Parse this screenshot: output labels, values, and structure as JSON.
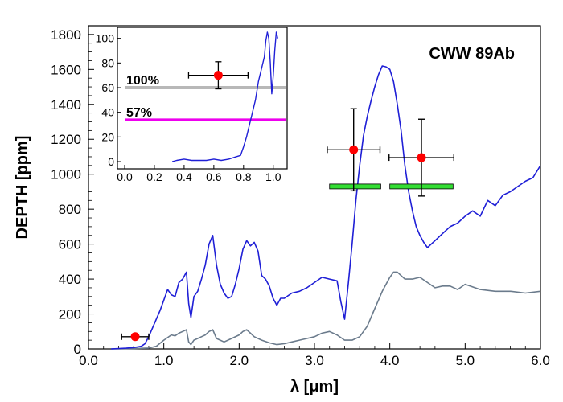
{
  "chart_data": {
    "type": "line",
    "title": "CWW 89Ab",
    "xlabel": "λ [μm]",
    "ylabel": "DEPTH [ppm]",
    "xlim": [
      0.0,
      6.0
    ],
    "ylim": [
      0,
      1850
    ],
    "x_ticks": [
      "0.0",
      "1.0",
      "2.0",
      "3.0",
      "4.0",
      "5.0",
      "6.0"
    ],
    "y_ticks": [
      "0",
      "200",
      "400",
      "600",
      "800",
      "1000",
      "1200",
      "1400",
      "1600",
      "1800"
    ],
    "colors": {
      "spectrum_blue": "#1f1fd6",
      "spectrum_gray": "#6b7b8c",
      "points": "#ff0000",
      "band": "#33dd33",
      "line_100": "#b8b8b8",
      "line_57": "#ee00ee"
    },
    "series": [
      {
        "color": "#1f1fd6",
        "x": [
          0.3,
          0.5,
          0.6,
          0.7,
          0.75,
          0.8,
          0.85,
          0.9,
          0.95,
          1.0,
          1.05,
          1.1,
          1.15,
          1.2,
          1.25,
          1.3,
          1.33,
          1.36,
          1.4,
          1.45,
          1.5,
          1.55,
          1.6,
          1.65,
          1.7,
          1.75,
          1.8,
          1.85,
          1.9,
          1.95,
          2.0,
          2.05,
          2.1,
          2.15,
          2.2,
          2.25,
          2.3,
          2.35,
          2.4,
          2.45,
          2.5,
          2.55,
          2.6,
          2.7,
          2.8,
          2.9,
          3.0,
          3.1,
          3.2,
          3.3,
          3.35,
          3.4,
          3.45,
          3.5,
          3.55,
          3.6,
          3.65,
          3.7,
          3.75,
          3.8,
          3.85,
          3.9,
          3.95,
          4.0,
          4.05,
          4.1,
          4.15,
          4.2,
          4.25,
          4.3,
          4.35,
          4.4,
          4.45,
          4.5,
          4.55,
          4.6,
          4.7,
          4.8,
          4.9,
          5.0,
          5.1,
          5.2,
          5.3,
          5.4,
          5.5,
          5.6,
          5.7,
          5.8,
          5.9,
          6.0
        ],
        "y": [
          0,
          4,
          8,
          15,
          30,
          70,
          120,
          170,
          220,
          280,
          340,
          310,
          300,
          380,
          400,
          440,
          260,
          180,
          300,
          330,
          400,
          480,
          600,
          650,
          480,
          370,
          320,
          290,
          300,
          370,
          460,
          570,
          620,
          590,
          610,
          560,
          420,
          400,
          360,
          290,
          250,
          290,
          290,
          320,
          330,
          350,
          380,
          410,
          400,
          390,
          270,
          170,
          380,
          600,
          850,
          1050,
          1220,
          1330,
          1420,
          1500,
          1570,
          1620,
          1615,
          1600,
          1530,
          1400,
          1250,
          1050,
          900,
          790,
          700,
          650,
          610,
          580,
          600,
          620,
          660,
          700,
          720,
          760,
          790,
          760,
          850,
          820,
          880,
          900,
          930,
          960,
          980,
          1050
        ]
      },
      {
        "color": "#6b7b8c",
        "x": [
          0.3,
          0.6,
          0.8,
          0.9,
          1.0,
          1.1,
          1.15,
          1.2,
          1.25,
          1.3,
          1.33,
          1.36,
          1.4,
          1.45,
          1.5,
          1.55,
          1.6,
          1.65,
          1.7,
          1.8,
          1.9,
          2.0,
          2.05,
          2.1,
          2.15,
          2.2,
          2.3,
          2.4,
          2.5,
          2.6,
          2.7,
          2.8,
          2.9,
          3.0,
          3.1,
          3.2,
          3.3,
          3.4,
          3.5,
          3.6,
          3.7,
          3.8,
          3.9,
          4.0,
          4.05,
          4.1,
          4.2,
          4.3,
          4.4,
          4.5,
          4.6,
          4.7,
          4.8,
          4.9,
          5.0,
          5.2,
          5.4,
          5.6,
          5.8,
          6.0
        ],
        "y": [
          0,
          2,
          5,
          15,
          50,
          80,
          75,
          90,
          100,
          110,
          40,
          25,
          50,
          60,
          70,
          80,
          100,
          110,
          60,
          40,
          60,
          80,
          100,
          110,
          90,
          70,
          50,
          35,
          25,
          30,
          40,
          50,
          60,
          70,
          90,
          100,
          80,
          50,
          50,
          70,
          130,
          230,
          330,
          410,
          440,
          440,
          400,
          400,
          410,
          380,
          350,
          360,
          360,
          340,
          370,
          340,
          330,
          330,
          320,
          330
        ]
      }
    ],
    "points": [
      {
        "x": 0.62,
        "y": 70,
        "xerr": 0.18,
        "yerr": 0
      },
      {
        "x": 3.52,
        "y": 1140,
        "xerr": 0.35,
        "yerr": 235
      },
      {
        "x": 4.42,
        "y": 1095,
        "xerr": 0.43,
        "yerr": 220
      }
    ],
    "bands": [
      {
        "x0": 3.2,
        "x1": 3.88,
        "y": 930
      },
      {
        "x0": 4.0,
        "x1": 4.84,
        "y": 930
      }
    ],
    "inset": {
      "xlim": [
        0.0,
        1.05
      ],
      "ylim": [
        0,
        105
      ],
      "x_ticks": [
        "0.0",
        "0.2",
        "0.4",
        "0.6",
        "0.8",
        "1.0"
      ],
      "y_ticks": [
        "0",
        "20",
        "40",
        "60",
        "80",
        "100"
      ],
      "line_100": {
        "label": "100%",
        "y": 60
      },
      "line_57": {
        "label": "57%",
        "y": 34
      },
      "point": {
        "x": 0.63,
        "y": 70,
        "xerr": 0.2,
        "yerr": 11
      },
      "series": {
        "color": "#1f1fd6",
        "x": [
          0.32,
          0.35,
          0.4,
          0.45,
          0.5,
          0.55,
          0.6,
          0.65,
          0.7,
          0.75,
          0.78,
          0.8,
          0.82,
          0.84,
          0.86,
          0.88,
          0.9,
          0.92,
          0.94,
          0.95,
          0.96,
          0.97,
          0.98,
          0.99,
          1.0,
          1.01,
          1.02,
          1.03
        ],
        "y": [
          0,
          1,
          2,
          1,
          1,
          1,
          2,
          1,
          2,
          4,
          5,
          12,
          20,
          30,
          40,
          50,
          65,
          75,
          85,
          98,
          105,
          100,
          80,
          55,
          70,
          90,
          105,
          100
        ]
      }
    }
  }
}
